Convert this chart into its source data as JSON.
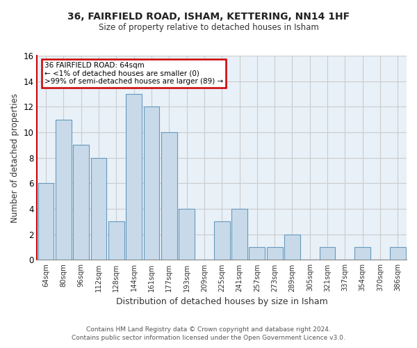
{
  "title": "36, FAIRFIELD ROAD, ISHAM, KETTERING, NN14 1HF",
  "subtitle": "Size of property relative to detached houses in Isham",
  "xlabel": "Distribution of detached houses by size in Isham",
  "ylabel": "Number of detached properties",
  "bar_color": "#c8daea",
  "bar_edge_color": "#6699bb",
  "plot_bg_color": "#e8f0f8",
  "categories": [
    "64sqm",
    "80sqm",
    "96sqm",
    "112sqm",
    "128sqm",
    "144sqm",
    "161sqm",
    "177sqm",
    "193sqm",
    "209sqm",
    "225sqm",
    "241sqm",
    "257sqm",
    "273sqm",
    "289sqm",
    "305sqm",
    "321sqm",
    "337sqm",
    "354sqm",
    "370sqm",
    "386sqm"
  ],
  "values": [
    6,
    11,
    9,
    8,
    3,
    13,
    12,
    10,
    4,
    0,
    3,
    4,
    1,
    1,
    2,
    0,
    1,
    0,
    1,
    0,
    1
  ],
  "ylim": [
    0,
    16
  ],
  "yticks": [
    0,
    2,
    4,
    6,
    8,
    10,
    12,
    14,
    16
  ],
  "annotation_title": "36 FAIRFIELD ROAD: 64sqm",
  "annotation_line1": "← <1% of detached houses are smaller (0)",
  "annotation_line2": ">99% of semi-detached houses are larger (89) →",
  "annotation_box_color": "#ffffff",
  "annotation_box_edge_color": "#cc0000",
  "highlight_bar_index": 0,
  "footer_line1": "Contains HM Land Registry data © Crown copyright and database right 2024.",
  "footer_line2": "Contains public sector information licensed under the Open Government Licence v3.0.",
  "background_color": "#ffffff",
  "grid_color": "#cccccc"
}
